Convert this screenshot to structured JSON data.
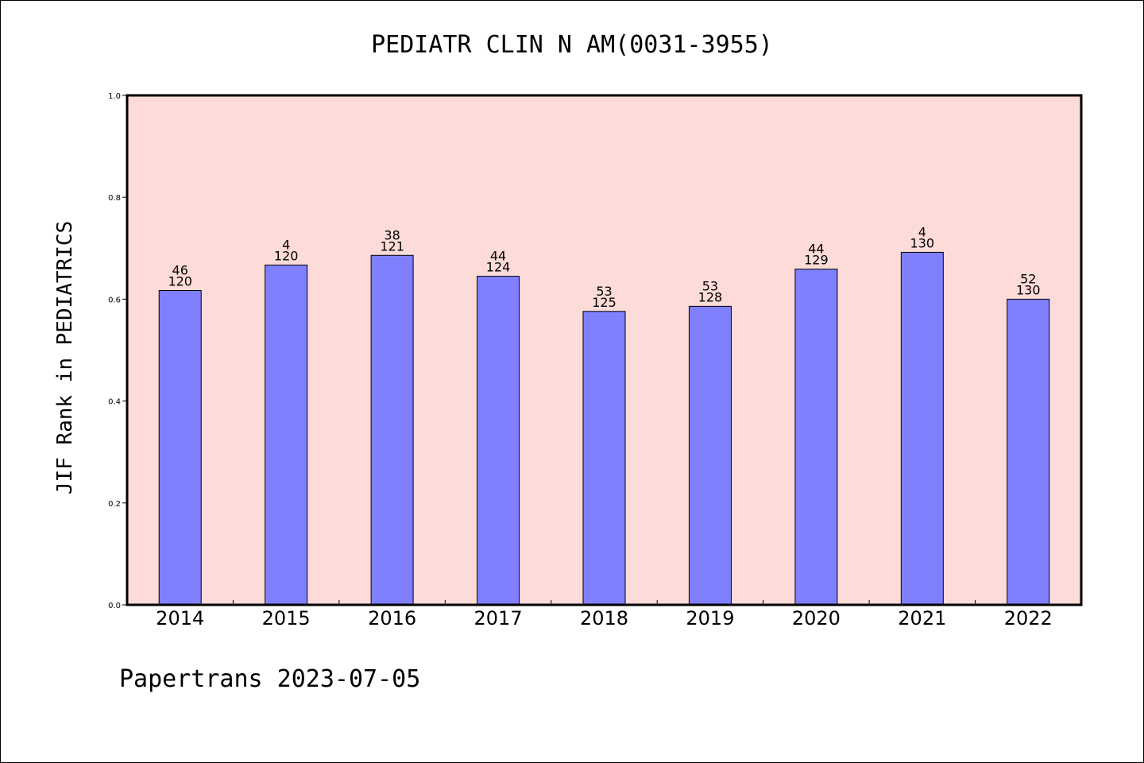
{
  "chart_data": {
    "type": "bar",
    "title": "PEDIATR CLIN N AM(0031-3955)",
    "ylabel": "JIF Rank in PEDIATRICS",
    "xlabel": "",
    "ylim": [
      0.0,
      1.0
    ],
    "yticks": [
      "0.0",
      "0.2",
      "0.4",
      "0.6",
      "0.8",
      "1.0"
    ],
    "categories": [
      "2014",
      "2015",
      "2016",
      "2017",
      "2018",
      "2019",
      "2020",
      "2021",
      "2022"
    ],
    "values": [
      0.617,
      0.667,
      0.686,
      0.645,
      0.576,
      0.586,
      0.659,
      0.692,
      0.6
    ],
    "rank": [
      "46",
      "4",
      "38",
      "44",
      "53",
      "53",
      "44",
      "4",
      "52"
    ],
    "total": [
      "120",
      "120",
      "121",
      "124",
      "125",
      "128",
      "129",
      "130",
      "130"
    ],
    "plot_background": "#fddbd8",
    "bar_color": "#8080ff",
    "footer": "Papertrans 2023-07-05"
  }
}
